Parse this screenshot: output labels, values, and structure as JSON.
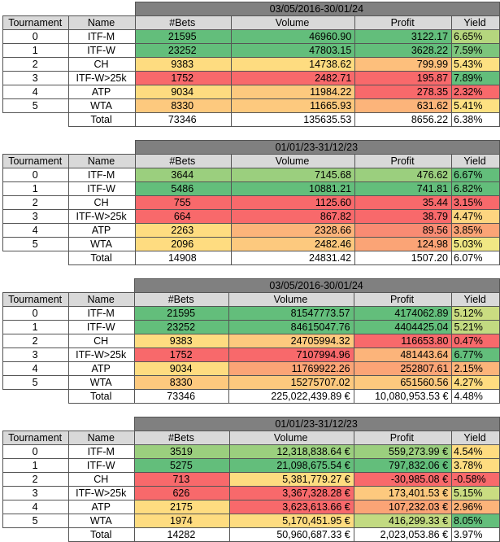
{
  "headers": [
    "Tournament",
    "Name",
    "#Bets",
    "Volume",
    "Profit",
    "Yield"
  ],
  "tables": [
    {
      "title": "03/05/2016-30/01/24",
      "rows": [
        {
          "t": "0",
          "name": "ITF-M",
          "bets": "21595",
          "volume": "46960.90",
          "profit": "3122.17",
          "yield": "6.65%",
          "bc": "#63be7b",
          "vc": "#63be7b",
          "pc": "#63be7b",
          "yc": "#b5d67e"
        },
        {
          "t": "1",
          "name": "ITF-W",
          "bets": "23252",
          "volume": "47803.15",
          "profit": "3628.22",
          "yield": "7.59%",
          "bc": "#63be7b",
          "vc": "#63be7b",
          "pc": "#63be7b",
          "yc": "#7cc57c"
        },
        {
          "t": "2",
          "name": "CH",
          "bets": "9383",
          "volume": "14738.62",
          "profit": "799.99",
          "yield": "5.43%",
          "bc": "#fedc80",
          "vc": "#fedc80",
          "pc": "#fdbf7c",
          "yc": "#fde182"
        },
        {
          "t": "3",
          "name": "ITF-W>25k",
          "bets": "1752",
          "volume": "2482.71",
          "profit": "195.87",
          "yield": "7.89%",
          "bc": "#f8696b",
          "vc": "#f8696b",
          "pc": "#f8696b",
          "yc": "#63be7b"
        },
        {
          "t": "4",
          "name": "ATP",
          "bets": "9034",
          "volume": "11984.22",
          "profit": "278.35",
          "yield": "2.32%",
          "bc": "#fedc80",
          "vc": "#fdc97e",
          "pc": "#f8696b",
          "yc": "#f8696b"
        },
        {
          "t": "5",
          "name": "WTA",
          "bets": "8330",
          "volume": "11665.93",
          "profit": "631.62",
          "yield": "5.41%",
          "bc": "#fdc97e",
          "vc": "#fdc97e",
          "pc": "#fcb47a",
          "yc": "#fde182"
        }
      ],
      "total": {
        "label": "Total",
        "bets": "73346",
        "volume": "135635.53",
        "profit": "8656.22",
        "yield": "6.38%"
      }
    },
    {
      "title": "01/01/23-31/12/23",
      "rows": [
        {
          "t": "0",
          "name": "ITF-M",
          "bets": "3644",
          "volume": "7145.68",
          "profit": "476.62",
          "yield": "6.67%",
          "bc": "#9bcf7e",
          "vc": "#9bcf7e",
          "pc": "#9bcf7e",
          "yc": "#63be7b"
        },
        {
          "t": "1",
          "name": "ITF-W",
          "bets": "5486",
          "volume": "10881.21",
          "profit": "741.81",
          "yield": "6.82%",
          "bc": "#63be7b",
          "vc": "#63be7b",
          "pc": "#63be7b",
          "yc": "#63be7b"
        },
        {
          "t": "2",
          "name": "CH",
          "bets": "755",
          "volume": "1125.60",
          "profit": "35.44",
          "yield": "3.15%",
          "bc": "#f8696b",
          "vc": "#f8696b",
          "pc": "#f8696b",
          "yc": "#f8696b"
        },
        {
          "t": "3",
          "name": "ITF-W>25k",
          "bets": "664",
          "volume": "867.82",
          "profit": "38.79",
          "yield": "4.47%",
          "bc": "#f8696b",
          "vc": "#f8696b",
          "pc": "#f8696b",
          "yc": "#fdd580"
        },
        {
          "t": "4",
          "name": "ATP",
          "bets": "2263",
          "volume": "2328.66",
          "profit": "89.56",
          "yield": "3.85%",
          "bc": "#fedc80",
          "vc": "#fcb47a",
          "pc": "#f98b73",
          "yc": "#fba476"
        },
        {
          "t": "5",
          "name": "WTA",
          "bets": "2096",
          "volume": "2482.46",
          "profit": "124.98",
          "yield": "5.03%",
          "bc": "#fedc80",
          "vc": "#fdc97e",
          "pc": "#fba476",
          "yc": "#f0e784"
        }
      ],
      "total": {
        "label": "Total",
        "bets": "14908",
        "volume": "24831.42",
        "profit": "1507.20",
        "yield": "6.07%"
      }
    },
    {
      "title": "03/05/2016-30/01/24",
      "rows": [
        {
          "t": "0",
          "name": "ITF-M",
          "bets": "21595",
          "volume": "81547773.57",
          "profit": "4174062.89",
          "yield": "5.12%",
          "bc": "#63be7b",
          "vc": "#63be7b",
          "pc": "#63be7b",
          "yc": "#cadc81"
        },
        {
          "t": "1",
          "name": "ITF-W",
          "bets": "23252",
          "volume": "84615047.76",
          "profit": "4404425.04",
          "yield": "5.21%",
          "bc": "#63be7b",
          "vc": "#63be7b",
          "pc": "#63be7b",
          "yc": "#c2da81"
        },
        {
          "t": "2",
          "name": "CH",
          "bets": "9383",
          "volume": "24705994.32",
          "profit": "116653.80",
          "yield": "0.47%",
          "bc": "#fedc80",
          "vc": "#fdc97e",
          "pc": "#f8696b",
          "yc": "#f8696b"
        },
        {
          "t": "3",
          "name": "ITF-W>25k",
          "bets": "1752",
          "volume": "7107994.96",
          "profit": "481443.64",
          "yield": "6.77%",
          "bc": "#f8696b",
          "vc": "#f8696b",
          "pc": "#fcb47a",
          "yc": "#63be7b"
        },
        {
          "t": "4",
          "name": "ATP",
          "bets": "9034",
          "volume": "11769922.26",
          "profit": "252807.61",
          "yield": "2.15%",
          "bc": "#fedc80",
          "vc": "#fba476",
          "pc": "#fba476",
          "yc": "#fcb47a"
        },
        {
          "t": "5",
          "name": "WTA",
          "bets": "8330",
          "volume": "15275707.02",
          "profit": "651560.56",
          "yield": "4.27%",
          "bc": "#fdc97e",
          "vc": "#fdc97e",
          "pc": "#fdc97e",
          "yc": "#fedc80"
        }
      ],
      "total": {
        "label": "Total",
        "bets": "73346",
        "volume": "225,022,439.89 €",
        "profit": "10,080,953.53 €",
        "yield": "4.48%"
      }
    },
    {
      "title": "01/01/23-31/12/23",
      "rows": [
        {
          "t": "0",
          "name": "ITF-M",
          "bets": "3519",
          "volume": "12,318,838.64 €",
          "profit": "559,273.99 €",
          "yield": "4.54%",
          "bc": "#9bcf7e",
          "vc": "#9bcf7e",
          "pc": "#9bcf7e",
          "yc": "#fedc80"
        },
        {
          "t": "1",
          "name": "ITF-W",
          "bets": "5275",
          "volume": "21,098,675.54 €",
          "profit": "797,832.06 €",
          "yield": "3.78%",
          "bc": "#63be7b",
          "vc": "#63be7b",
          "pc": "#63be7b",
          "yc": "#fedc80"
        },
        {
          "t": "2",
          "name": "CH",
          "bets": "713",
          "volume": "5,381,779.27 €",
          "profit": "-30,985.08 €",
          "yield": "-0.58%",
          "bc": "#f8696b",
          "vc": "#fedc80",
          "pc": "#f8696b",
          "yc": "#f8696b"
        },
        {
          "t": "3",
          "name": "ITF-W>25k",
          "bets": "626",
          "volume": "3,367,328.28 €",
          "profit": "173,401.53 €",
          "yield": "5.15%",
          "bc": "#f8696b",
          "vc": "#f8696b",
          "pc": "#fdc97e",
          "yc": "#cadc81"
        },
        {
          "t": "4",
          "name": "ATP",
          "bets": "2175",
          "volume": "3,623,613.66 €",
          "profit": "107,232.03 €",
          "yield": "2.96%",
          "bc": "#fedc80",
          "vc": "#f8696b",
          "pc": "#fba476",
          "yc": "#fcb47a"
        },
        {
          "t": "5",
          "name": "WTA",
          "bets": "1974",
          "volume": "5,170,451.95 €",
          "profit": "416,299.33 €",
          "yield": "8.05%",
          "bc": "#fedc80",
          "vc": "#fedc80",
          "pc": "#c2da81",
          "yc": "#63be7b"
        }
      ],
      "total": {
        "label": "Total",
        "bets": "14282",
        "volume": "50,960,687.33 €",
        "profit": "2,023,053.86 €",
        "yield": "3.97%"
      }
    }
  ]
}
